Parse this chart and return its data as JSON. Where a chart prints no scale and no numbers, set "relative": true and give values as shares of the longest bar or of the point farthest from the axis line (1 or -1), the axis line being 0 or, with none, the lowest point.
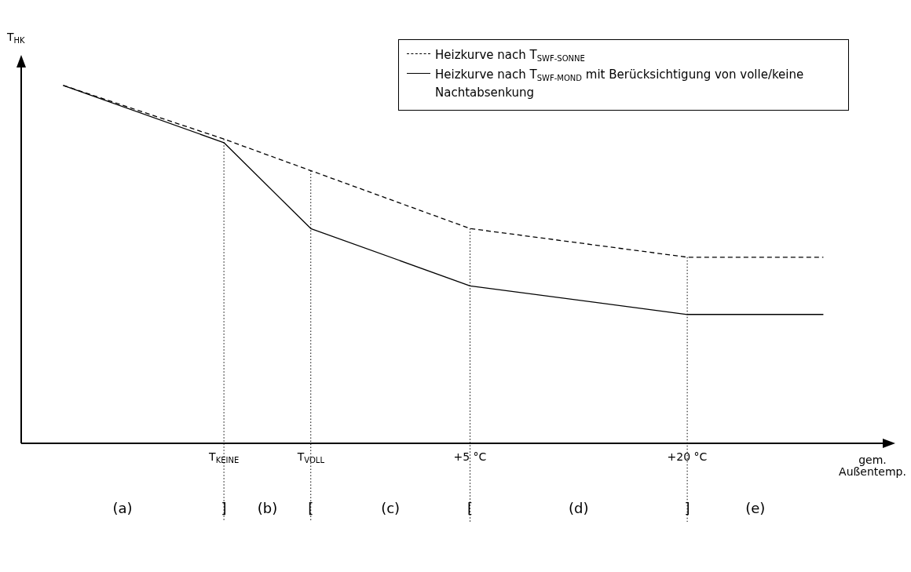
{
  "chart_data": {
    "type": "line",
    "relative": true,
    "ylabel": "T$_{HK}$",
    "xlabel": "gem. Außentemp.",
    "xlim": [
      -26,
      33.5
    ],
    "xticks": [
      {
        "value": -12,
        "label": "T$_{KEINE}$"
      },
      {
        "value": -6,
        "label": "T$_{VOLL}$"
      },
      {
        "value": 5,
        "label": "+5 °C"
      },
      {
        "value": 20,
        "label": "+20 °C"
      }
    ],
    "series": [
      {
        "name": "Heizkurve nach T$_{SWF-SONNE}$",
        "color": "#000000",
        "line_style": "dashed",
        "x": [
          -23.1,
          -12,
          5,
          20,
          29.4
        ],
        "values": [
          1.0,
          0.85,
          0.6,
          0.52,
          0.52
        ]
      },
      {
        "name": "Heizkurve nach T$_{SWF-MOND}$ mit Berücksichtigung von volle/keine Nachtabsenkung",
        "color": "#000000",
        "line_style": "solid",
        "x": [
          -23.1,
          -12,
          -6,
          5,
          20,
          29.4
        ],
        "values": [
          1.0,
          0.84,
          0.6,
          0.44,
          0.36,
          0.36
        ]
      }
    ],
    "ref_lines": [
      {
        "axis": "x",
        "value": -12,
        "line_style": "dotted"
      },
      {
        "axis": "x",
        "value": -6,
        "line_style": "dotted"
      },
      {
        "axis": "x",
        "value": 5,
        "line_style": "dotted"
      },
      {
        "axis": "x",
        "value": 20,
        "line_style": "dotted"
      }
    ],
    "annotations": [
      "(a)",
      {
        "text": "]",
        "x": -12
      },
      "(b)",
      {
        "text": "[",
        "x": -6
      },
      "(c)",
      {
        "text": "[",
        "x": 5
      },
      "(d)",
      {
        "text": "]",
        "x": 20
      },
      "(e)"
    ],
    "legend": "top right",
    "grid": false,
    "marker": "none"
  }
}
